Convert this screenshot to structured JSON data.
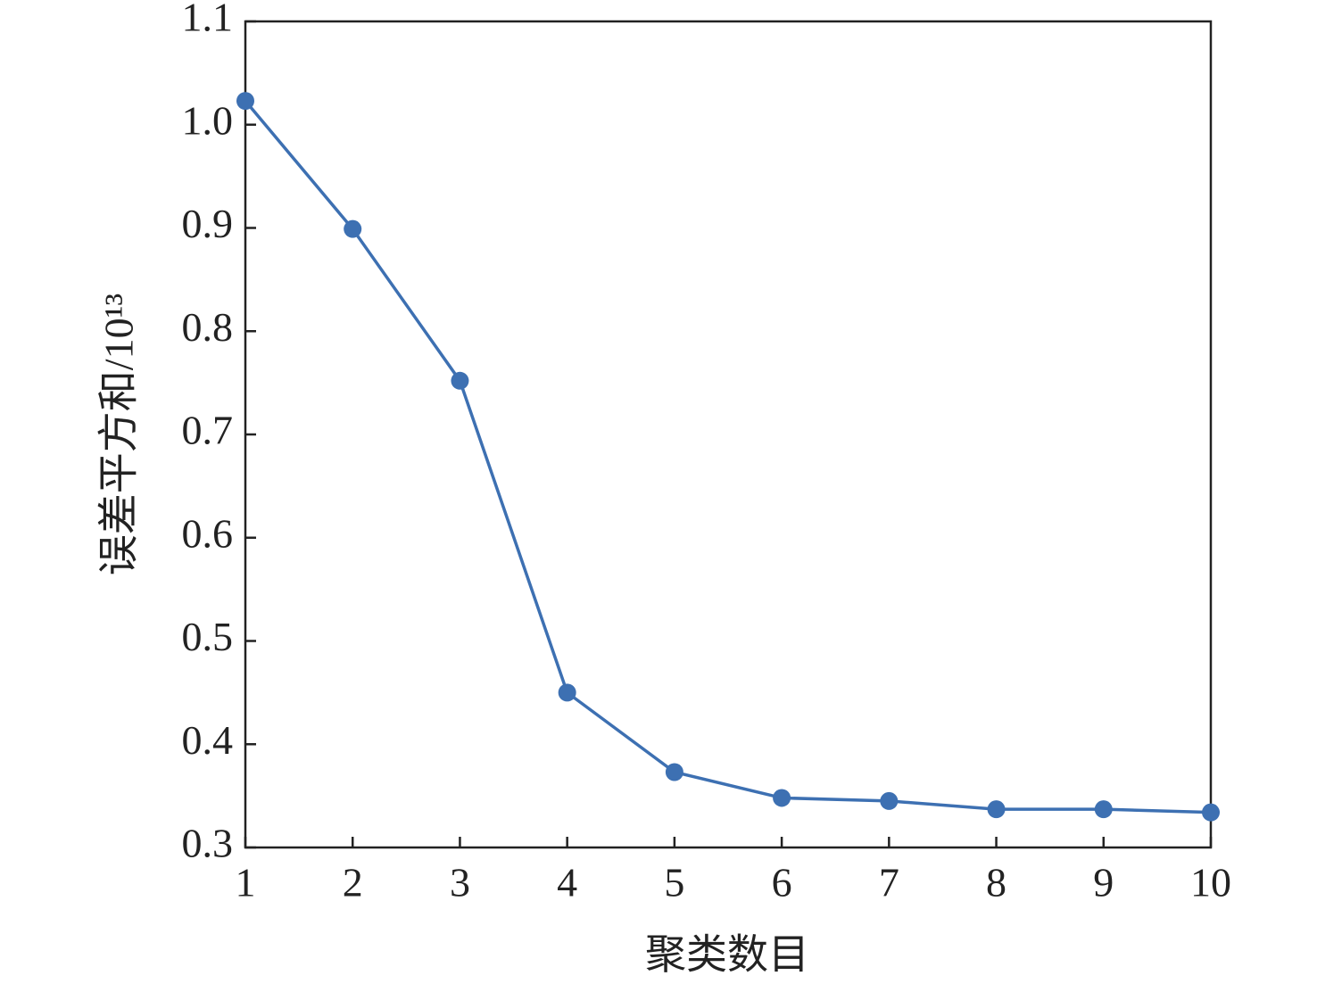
{
  "chart_data": {
    "type": "line",
    "xlabel": "聚类数目",
    "ylabel": "误差平方和/10¹³",
    "x": [
      1,
      2,
      3,
      4,
      5,
      6,
      7,
      8,
      9,
      10
    ],
    "series": [
      {
        "color": "#3d70b2",
        "values": [
          1.023,
          0.899,
          0.752,
          0.45,
          0.373,
          0.348,
          0.345,
          0.337,
          0.337,
          0.334
        ]
      }
    ],
    "xlim": [
      1,
      10
    ],
    "xticks": [
      1,
      2,
      3,
      4,
      5,
      6,
      7,
      8,
      9,
      10
    ],
    "ylim": [
      0.3,
      1.1
    ],
    "yticks": [
      0.3,
      0.4,
      0.5,
      0.6,
      0.7,
      0.8,
      0.9,
      {
        "value": 1,
        "label": "1.0"
      },
      1.1
    ],
    "grid": false
  }
}
